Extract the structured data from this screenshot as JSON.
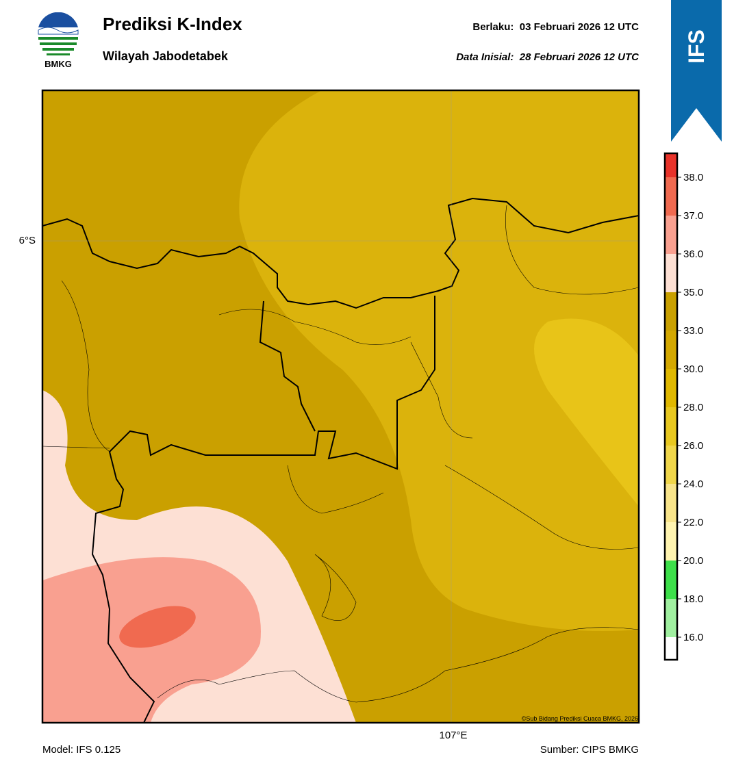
{
  "header": {
    "logo_text": "BMKG",
    "title": "Prediksi K-Index",
    "subtitle": "Wilayah Jabodetabek",
    "valid_label": "Berlaku:",
    "valid_time": "03 Februari 2026 12 UTC",
    "init_label": "Data Inisial:",
    "init_time": "28 Februari 2026 12 UTC",
    "badge": "IFS"
  },
  "map": {
    "lat_label": "6°S",
    "lon_label": "107°E",
    "copyright": "©Sub Bidang Prediksi Cuaca BMKG, 2026"
  },
  "colorbar": {
    "labels": [
      "38.0",
      "37.0",
      "36.0",
      "35.0",
      "33.0",
      "30.0",
      "28.0",
      "26.0",
      "24.0",
      "22.0",
      "20.0",
      "18.0",
      "16.0"
    ]
  },
  "footer": {
    "model": "Model: IFS 0.125",
    "source": "Sumber: CIPS BMKG"
  }
}
